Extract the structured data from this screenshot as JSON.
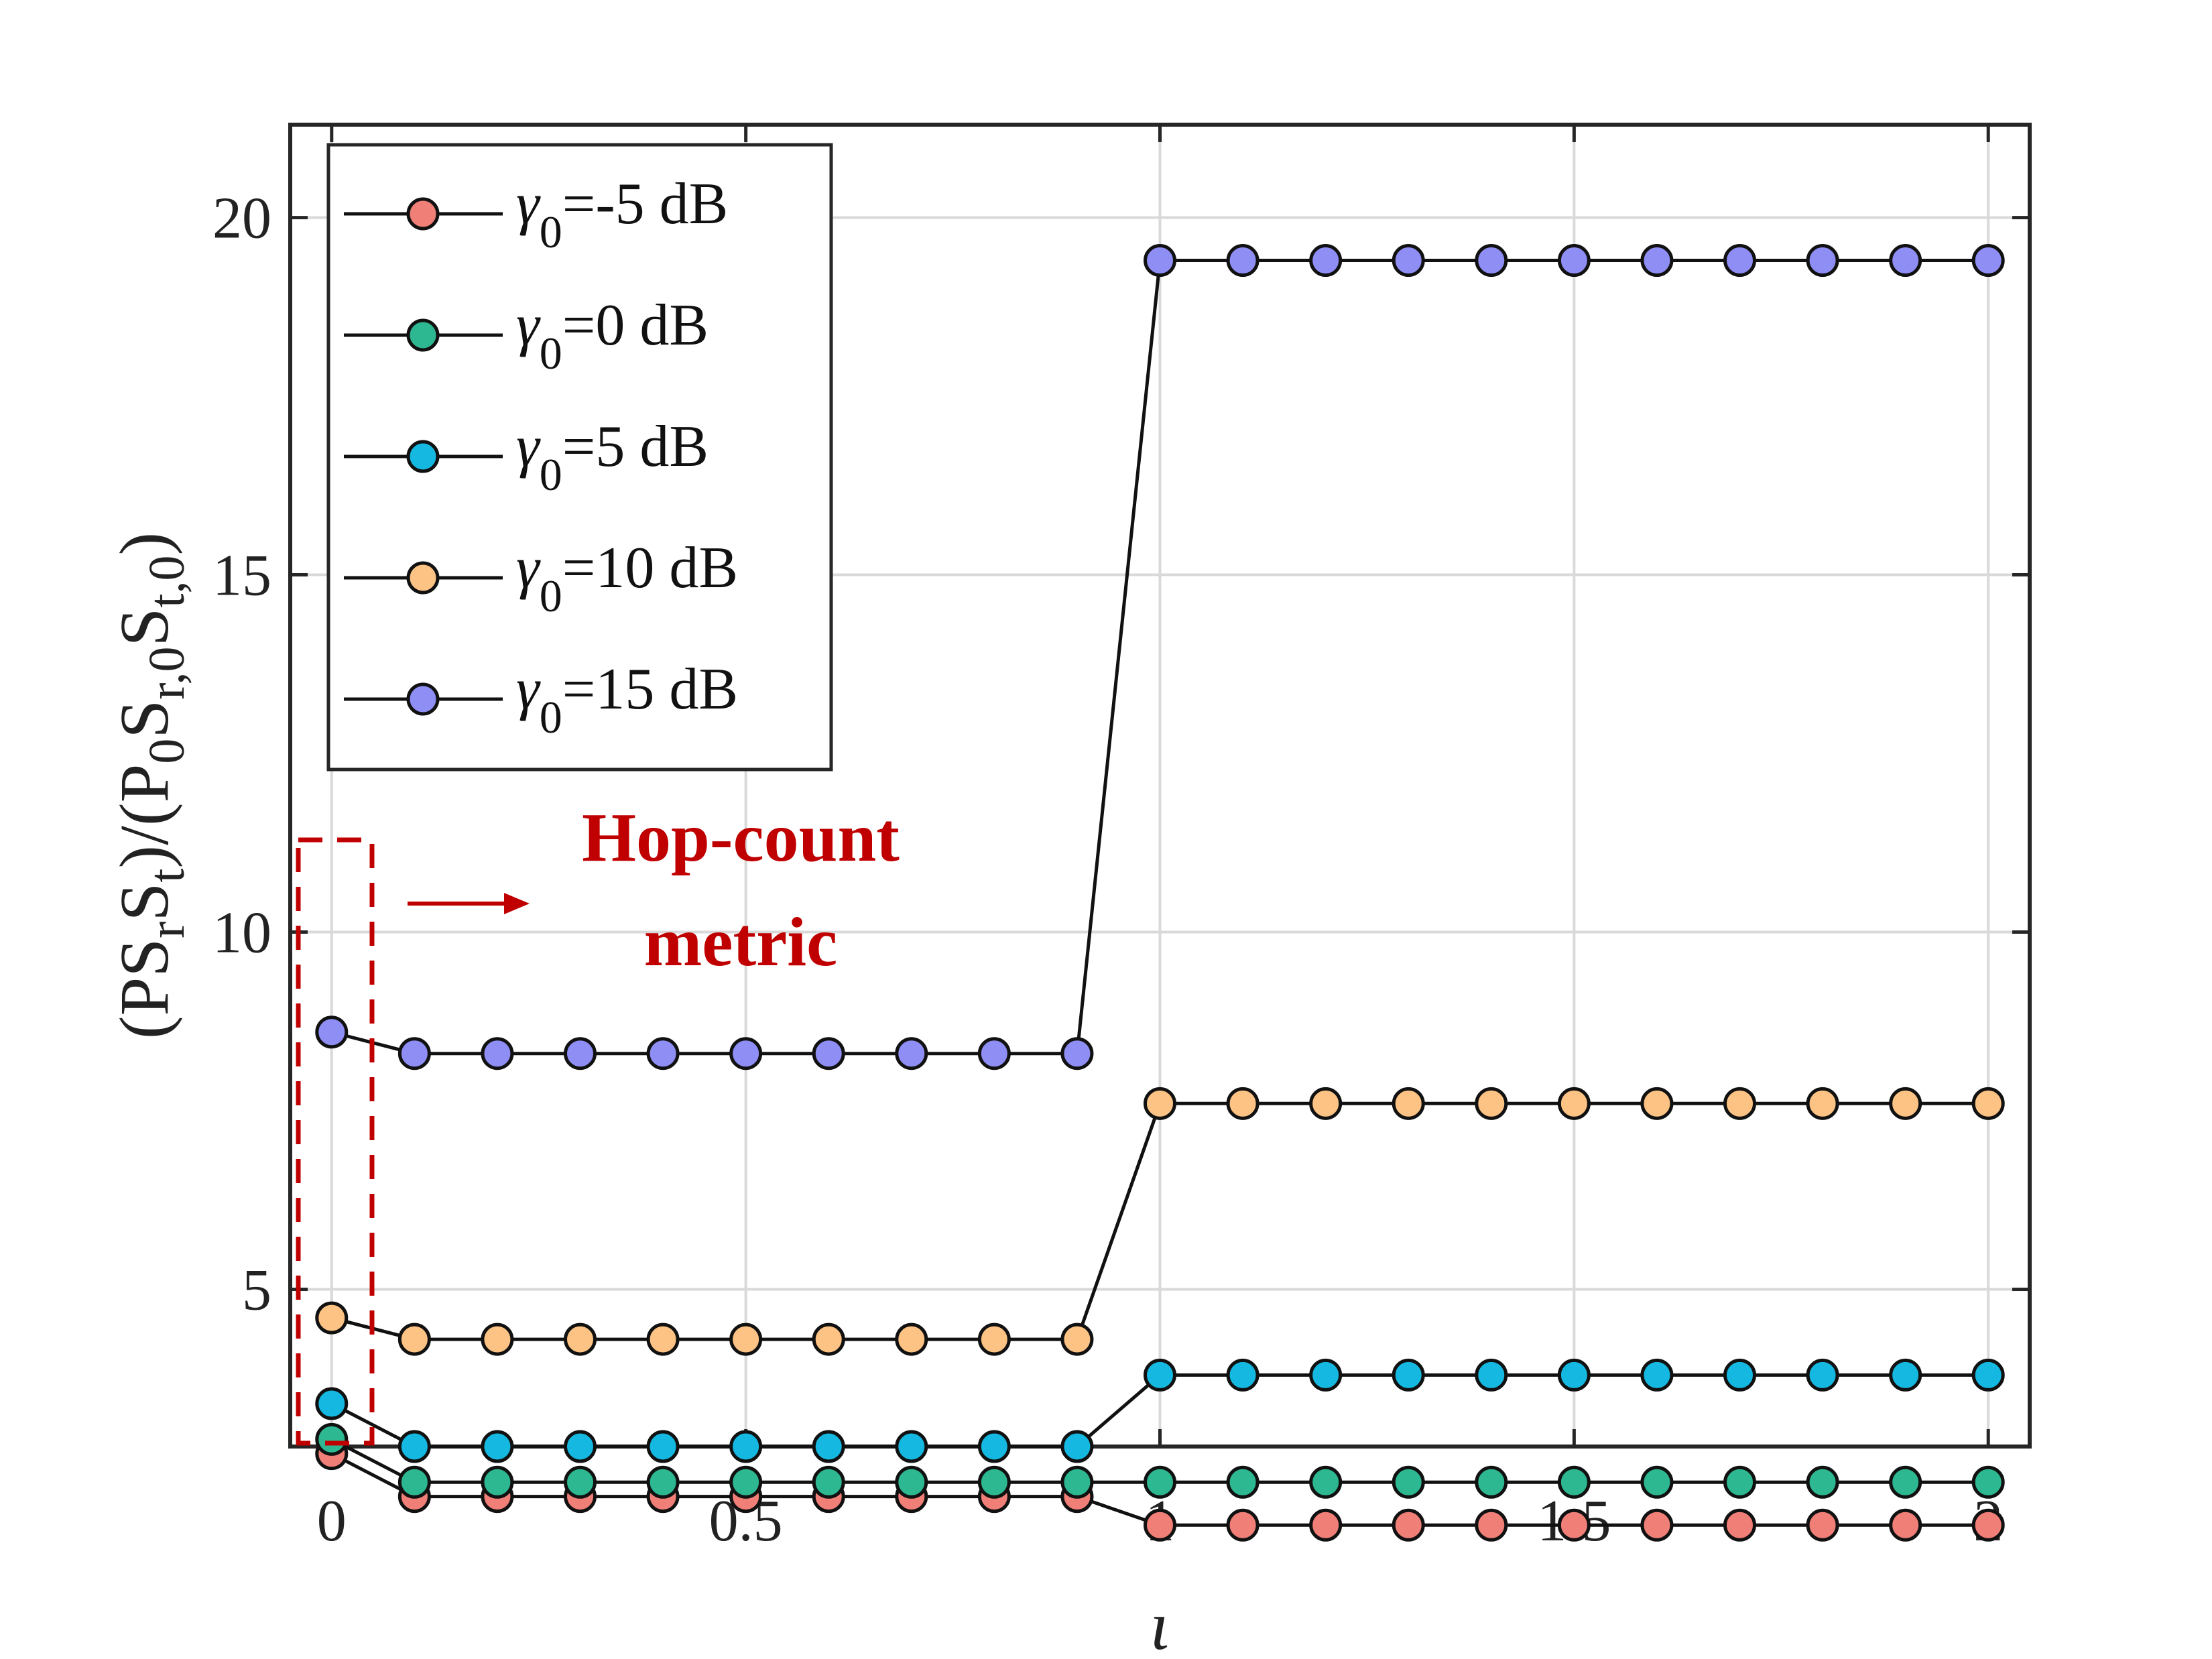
{
  "chart_data": {
    "type": "line",
    "x": [
      0,
      0.1,
      0.2,
      0.3,
      0.4,
      0.5,
      0.6,
      0.7,
      0.8,
      0.9,
      1,
      1.1,
      1.2,
      1.3,
      1.4,
      1.5,
      1.6,
      1.7,
      1.8,
      1.9,
      2
    ],
    "series": [
      {
        "name": "-5 dB",
        "color": "#f07f78",
        "values": [
          2.7,
          2.1,
          2.1,
          2.1,
          2.1,
          2.1,
          2.1,
          2.1,
          2.1,
          2.1,
          1.7,
          1.7,
          1.7,
          1.7,
          1.7,
          1.7,
          1.7,
          1.7,
          1.7,
          1.7,
          1.7
        ]
      },
      {
        "name": "0 dB",
        "color": "#2db891",
        "values": [
          2.9,
          2.3,
          2.3,
          2.3,
          2.3,
          2.3,
          2.3,
          2.3,
          2.3,
          2.3,
          2.3,
          2.3,
          2.3,
          2.3,
          2.3,
          2.3,
          2.3,
          2.3,
          2.3,
          2.3,
          2.3
        ]
      },
      {
        "name": "5 dB",
        "color": "#14b8e0",
        "values": [
          3.4,
          2.8,
          2.8,
          2.8,
          2.8,
          2.8,
          2.8,
          2.8,
          2.8,
          2.8,
          3.8,
          3.8,
          3.8,
          3.8,
          3.8,
          3.8,
          3.8,
          3.8,
          3.8,
          3.8,
          3.8
        ]
      },
      {
        "name": "10 dB",
        "color": "#fcc384",
        "values": [
          4.6,
          4.3,
          4.3,
          4.3,
          4.3,
          4.3,
          4.3,
          4.3,
          4.3,
          4.3,
          7.6,
          7.6,
          7.6,
          7.6,
          7.6,
          7.6,
          7.6,
          7.6,
          7.6,
          7.6,
          7.6
        ]
      },
      {
        "name": "15 dB",
        "color": "#8f8ef5",
        "values": [
          8.6,
          8.3,
          8.3,
          8.3,
          8.3,
          8.3,
          8.3,
          8.3,
          8.3,
          8.3,
          19.4,
          19.4,
          19.4,
          19.4,
          19.4,
          19.4,
          19.4,
          19.4,
          19.4,
          19.4,
          19.4
        ]
      }
    ],
    "legend_symbol": "γ",
    "legend_subscript": "0",
    "legend_equals": "=",
    "xlabel": "ι",
    "ylabel": {
      "p1": "(PS",
      "s1": "r",
      "p2": "S",
      "s2": "t",
      "p3": ")/(P",
      "s3": "0",
      "p4": "S",
      "s4": "r,0",
      "p5": "S",
      "s5": "t,0",
      "p6": ")"
    },
    "xlim": [
      -0.05,
      2.05
    ],
    "ylim": [
      2.8,
      21.3
    ],
    "xticks": [
      0,
      0.5,
      1,
      1.5,
      2
    ],
    "xtick_labels": [
      "0",
      "0.5",
      "1",
      "1.5",
      "2"
    ],
    "yticks": [
      5,
      10,
      15,
      20
    ],
    "ytick_labels": [
      "5",
      "10",
      "15",
      "20"
    ],
    "grid": true,
    "legend_position": "top-left",
    "annotation": {
      "line1": "Hop-count",
      "line2": "metric",
      "color": "#c00000"
    }
  }
}
